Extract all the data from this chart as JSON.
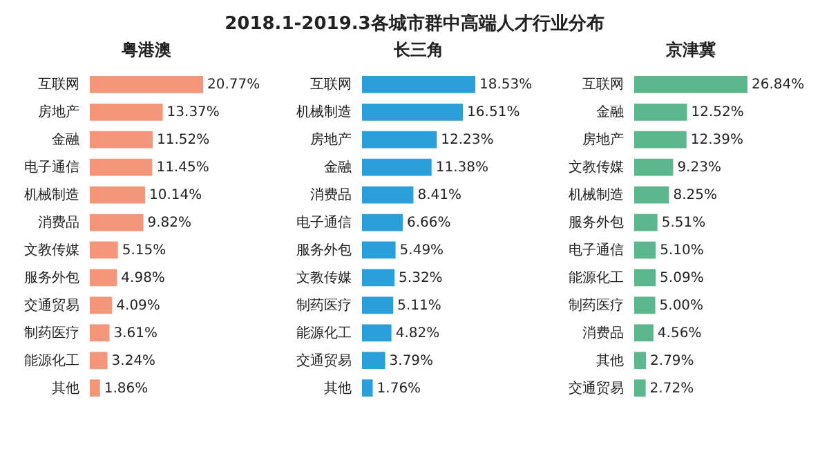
{
  "chart_data": [
    {
      "type": "other",
      "title": "2018.1-2019.3各城市群中高端人才行业分布"
    },
    {
      "type": "bar",
      "orientation": "horizontal",
      "title": "粤港澳",
      "color": "#f4967c",
      "categories": [
        "互联网",
        "房地产",
        "金融",
        "电子通信",
        "机械制造",
        "消费品",
        "文教传媒",
        "服务外包",
        "交通贸易",
        "制药医疗",
        "能源化工",
        "其他"
      ],
      "values": [
        20.77,
        13.37,
        11.52,
        11.45,
        10.14,
        9.82,
        5.15,
        4.98,
        4.09,
        3.61,
        3.24,
        1.86
      ],
      "value_labels": [
        "20.77%",
        "13.37%",
        "11.52%",
        "11.45%",
        "10.14%",
        "9.82%",
        "5.15%",
        "4.98%",
        "4.09%",
        "3.61%",
        "3.24%",
        "1.86%"
      ]
    },
    {
      "type": "bar",
      "orientation": "horizontal",
      "title": "长三角",
      "color": "#2b9fd9",
      "categories": [
        "互联网",
        "机械制造",
        "房地产",
        "金融",
        "消费品",
        "电子通信",
        "服务外包",
        "文教传媒",
        "制药医疗",
        "能源化工",
        "交通贸易",
        "其他"
      ],
      "values": [
        18.53,
        16.51,
        12.23,
        11.38,
        8.41,
        6.66,
        5.49,
        5.32,
        5.11,
        4.82,
        3.79,
        1.76
      ],
      "value_labels": [
        "18.53%",
        "16.51%",
        "12.23%",
        "11.38%",
        "8.41%",
        "6.66%",
        "5.49%",
        "5.32%",
        "5.11%",
        "4.82%",
        "3.79%",
        "1.76%"
      ]
    },
    {
      "type": "bar",
      "orientation": "horizontal",
      "title": "京津冀",
      "color": "#5cb88c",
      "categories": [
        "互联网",
        "金融",
        "房地产",
        "文教传媒",
        "机械制造",
        "服务外包",
        "电子通信",
        "能源化工",
        "制药医疗",
        "消费品",
        "其他",
        "交通贸易"
      ],
      "values": [
        26.84,
        12.52,
        12.39,
        9.23,
        8.25,
        5.51,
        5.1,
        5.09,
        5.0,
        4.56,
        2.79,
        2.72
      ],
      "value_labels": [
        "26.84%",
        "12.52%",
        "12.39%",
        "9.23%",
        "8.25%",
        "5.51%",
        "5.10%",
        "5.09%",
        "5.00%",
        "4.56%",
        "2.79%",
        "2.72%"
      ]
    }
  ]
}
